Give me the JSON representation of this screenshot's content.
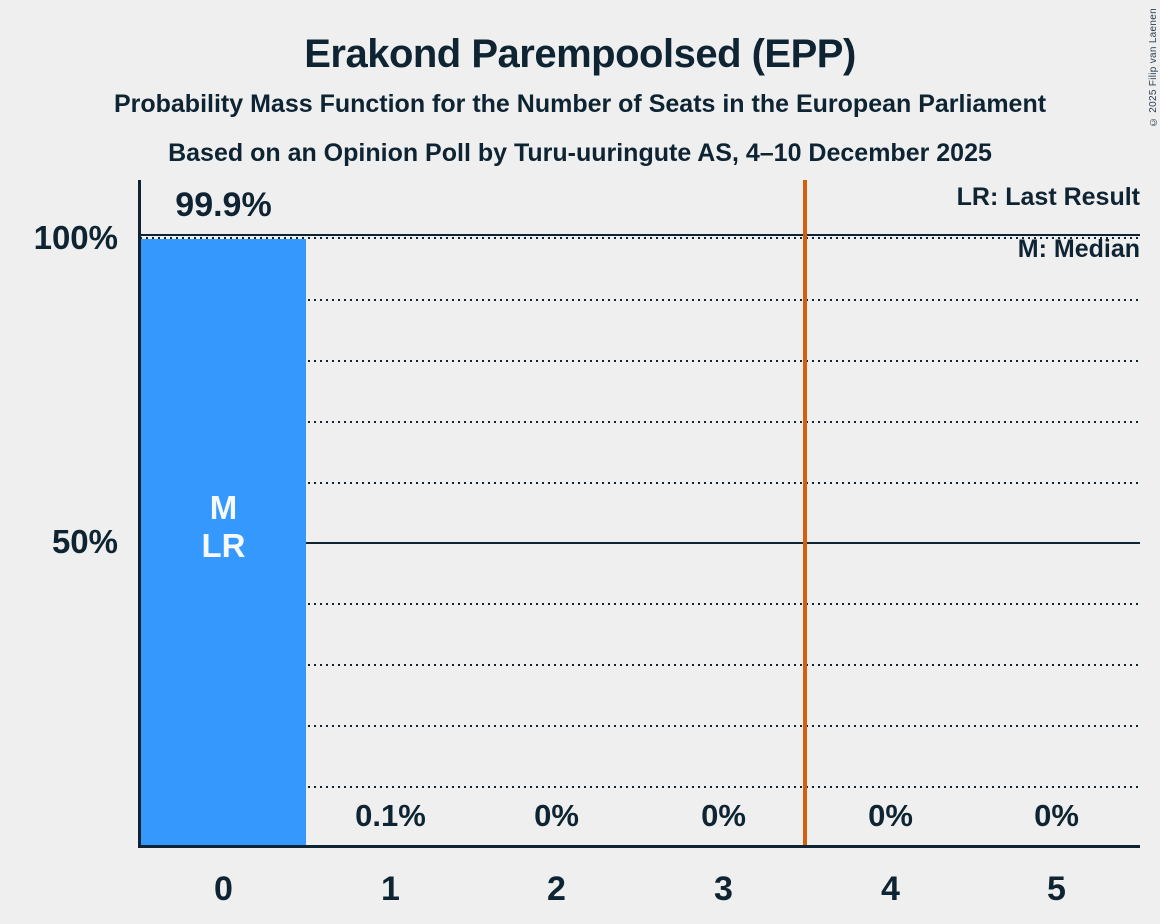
{
  "colors": {
    "background": "#efefef",
    "ink": "#0e2433",
    "bar": "#3598fc",
    "threshold_line": "#d2610e",
    "bar_label_text": "#f6f9fc"
  },
  "copyright_notice": "© 2025 Filip van Laenen",
  "legend": {
    "last_result": "LR: Last Result",
    "median": "M: Median"
  },
  "y_axis_ticks": [
    "100%",
    "50%"
  ],
  "bar_markers": {
    "median": "M",
    "last_result": "LR"
  },
  "chart_data": {
    "type": "bar",
    "title": "Erakond Parempoolsed (EPP)",
    "subtitle": "Probability Mass Function for the Number of Seats in the European Parliament",
    "source_line": "Based on an Opinion Poll by Turu-uuringute AS, 4–10 December 2025",
    "categories": [
      "0",
      "1",
      "2",
      "3",
      "4",
      "5"
    ],
    "values": [
      99.9,
      0.1,
      0,
      0,
      0,
      0
    ],
    "value_labels": [
      "99.9%",
      "0.1%",
      "0%",
      "0%",
      "0%",
      "0%"
    ],
    "xlabel": "",
    "ylabel": "",
    "ylim": [
      0,
      100
    ],
    "y_gridlines_pct": [
      10,
      20,
      30,
      40,
      50,
      60,
      70,
      80,
      90,
      100
    ],
    "solid_gridlines_pct": [
      50,
      100
    ],
    "dotted_gridlines_pct": [
      10,
      20,
      30,
      40,
      60,
      70,
      80,
      90
    ],
    "threshold_x": 3.5,
    "median_seats": 0,
    "last_result_seats": 0,
    "legend_position": "top-right",
    "grid": "dotted-horizontal"
  }
}
